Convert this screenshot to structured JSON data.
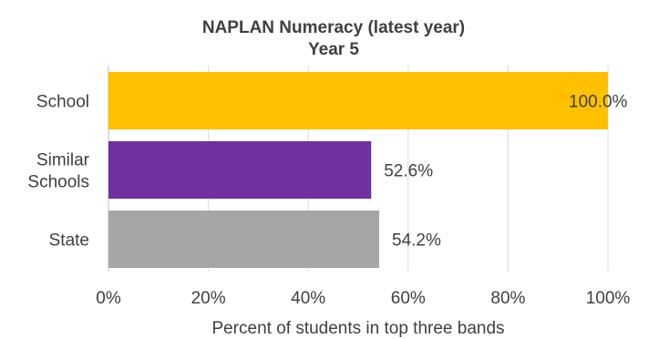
{
  "chart_data": {
    "type": "bar",
    "orientation": "horizontal",
    "title": "NAPLAN Numeracy (latest year)",
    "subtitle": "Year 5",
    "categories": [
      "School",
      "Similar Schools",
      "State"
    ],
    "category_lines": [
      [
        "School"
      ],
      [
        "Similar",
        "Schools"
      ],
      [
        "State"
      ]
    ],
    "values": [
      100.0,
      52.6,
      54.2
    ],
    "data_labels": [
      "100.0%",
      "52.6%",
      "54.2%"
    ],
    "colors": [
      "#FFC000",
      "#7030A0",
      "#A6A6A6"
    ],
    "xlabel": "Percent of students in top three bands",
    "ylabel": "",
    "xlim": [
      0,
      100
    ],
    "x_ticks": [
      "0%",
      "20%",
      "40%",
      "60%",
      "80%",
      "100%"
    ],
    "x_tick_values": [
      0,
      20,
      40,
      60,
      80,
      100
    ],
    "grid": "vertical"
  }
}
